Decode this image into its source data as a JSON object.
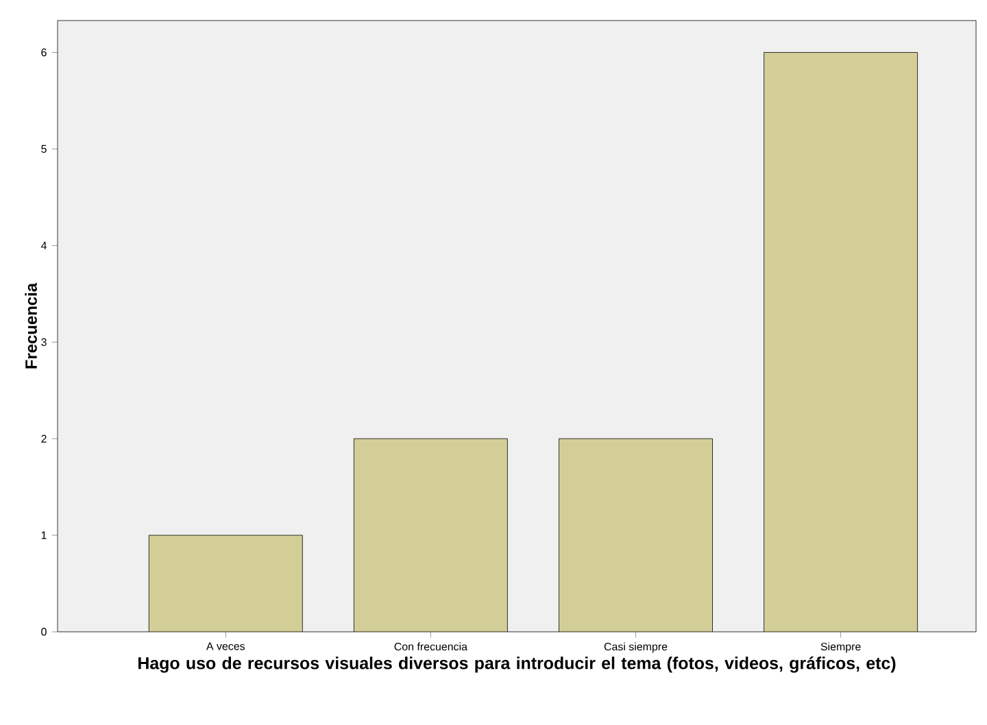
{
  "chart_data": {
    "type": "bar",
    "xlabel": "Hago uso de recursos visuales diversos para introducir el tema (fotos, videos, gráficos, etc)",
    "ylabel": "Frecuencia",
    "categories": [
      "A veces",
      "Con frecuencia",
      "Casi siempre",
      "Siempre"
    ],
    "values": [
      1,
      2,
      2,
      6
    ],
    "color": "#d3ce97",
    "ylim": [
      0,
      6.33
    ],
    "yticks": [
      0,
      1,
      2,
      3,
      4,
      5,
      6
    ],
    "grid": false
  }
}
